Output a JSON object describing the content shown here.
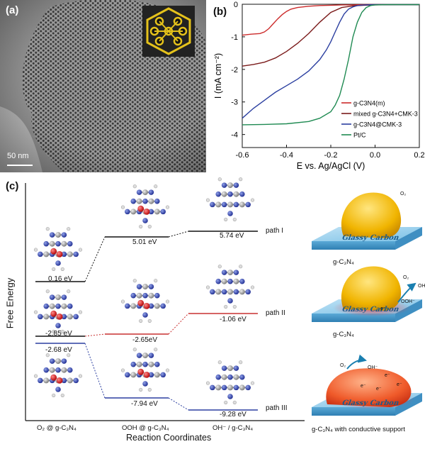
{
  "panel_a": {
    "label": "(a)",
    "scalebar": "50 nm"
  },
  "panel_b": {
    "label": "(b)",
    "chart_data": {
      "type": "line",
      "xlabel": "E vs. Ag/AgCl (V)",
      "ylabel": "I (mA cm⁻²)",
      "xlim": [
        -0.6,
        0.2
      ],
      "ylim": [
        -4.4,
        0
      ],
      "xticks": [
        "-0.6",
        "-0.4",
        "-0.2",
        "0.0",
        "0.2"
      ],
      "yticks": [
        "0",
        "-1",
        "-2",
        "-3",
        "-4"
      ],
      "legend_position": "bottom-right",
      "series": [
        {
          "name": "g-C3N4(m)",
          "color": "#cc2b2b",
          "x": [
            -0.6,
            -0.56,
            -0.52,
            -0.5,
            -0.48,
            -0.46,
            -0.44,
            -0.42,
            -0.4,
            -0.38,
            -0.35,
            -0.3,
            -0.25,
            -0.2,
            -0.15,
            -0.1,
            -0.05,
            0.0,
            0.1,
            0.2
          ],
          "y": [
            -0.95,
            -0.92,
            -0.9,
            -0.85,
            -0.75,
            -0.6,
            -0.45,
            -0.32,
            -0.22,
            -0.15,
            -0.1,
            -0.06,
            -0.04,
            -0.03,
            -0.02,
            -0.02,
            -0.01,
            -0.01,
            -0.01,
            -0.01
          ]
        },
        {
          "name": "mixed g-C3N4+CMK-3",
          "color": "#7a1a1a",
          "x": [
            -0.6,
            -0.55,
            -0.5,
            -0.45,
            -0.4,
            -0.35,
            -0.3,
            -0.25,
            -0.2,
            -0.15,
            -0.1,
            -0.05,
            0.0,
            0.1,
            0.2
          ],
          "y": [
            -1.9,
            -1.85,
            -1.78,
            -1.65,
            -1.45,
            -1.2,
            -0.9,
            -0.55,
            -0.25,
            -0.1,
            -0.05,
            -0.03,
            -0.02,
            -0.01,
            -0.01
          ]
        },
        {
          "name": "g-C3N4@CMK-3",
          "color": "#2b3fa0",
          "x": [
            -0.6,
            -0.55,
            -0.5,
            -0.45,
            -0.4,
            -0.35,
            -0.3,
            -0.25,
            -0.22,
            -0.2,
            -0.18,
            -0.16,
            -0.14,
            -0.12,
            -0.1,
            -0.08,
            -0.05,
            0.0,
            0.1,
            0.2
          ],
          "y": [
            -3.5,
            -3.2,
            -2.95,
            -2.7,
            -2.5,
            -2.3,
            -2.05,
            -1.7,
            -1.4,
            -1.15,
            -0.85,
            -0.55,
            -0.3,
            -0.15,
            -0.08,
            -0.04,
            -0.02,
            -0.01,
            -0.01,
            -0.01
          ]
        },
        {
          "name": "Pt/C",
          "color": "#1f8a52",
          "x": [
            -0.6,
            -0.5,
            -0.4,
            -0.3,
            -0.25,
            -0.2,
            -0.18,
            -0.16,
            -0.14,
            -0.12,
            -0.1,
            -0.08,
            -0.06,
            -0.04,
            -0.02,
            0.0,
            0.05,
            0.1,
            0.2
          ],
          "y": [
            -3.7,
            -3.69,
            -3.67,
            -3.6,
            -3.5,
            -3.3,
            -3.1,
            -2.8,
            -2.3,
            -1.7,
            -1.0,
            -0.55,
            -0.25,
            -0.1,
            -0.04,
            -0.02,
            -0.01,
            -0.01,
            -0.01
          ]
        }
      ]
    }
  },
  "panel_c": {
    "label": "(c)",
    "ylabel": "Free Energy",
    "xlabel": "Reaction Coordinates",
    "x_categories": [
      "O₂ @ g-C₃N₄",
      "OOH @ g-C₃N₄",
      "OH⁻ / g-C₃N₄"
    ],
    "paths": [
      "path I",
      "path II",
      "path III"
    ],
    "energies": {
      "e1": "0.16 eV",
      "e2": "5.01 eV",
      "e3": "5.74 eV",
      "e4": "-2.85 eV",
      "e5": "-2.65eV",
      "e6": "-1.06 eV",
      "e7": "-2.68 eV",
      "e8": "-7.94 eV",
      "e9": "-9.28 eV"
    },
    "schematics": [
      {
        "surface": "Glassy Carbon",
        "caption": "g-C₃N₄",
        "species": [
          "O₂"
        ]
      },
      {
        "surface": "Glassy Carbon",
        "caption": "g-C₃N₄",
        "species": [
          "O₂",
          "OH⁻",
          "OOH⁻",
          "e⁻"
        ]
      },
      {
        "surface": "Glassy Carbon",
        "caption": "g-C₃N₄ with conductive support",
        "species": [
          "O₂",
          "OH⁻",
          "e⁻",
          "e⁻",
          "e⁻",
          "e⁻"
        ]
      }
    ]
  }
}
